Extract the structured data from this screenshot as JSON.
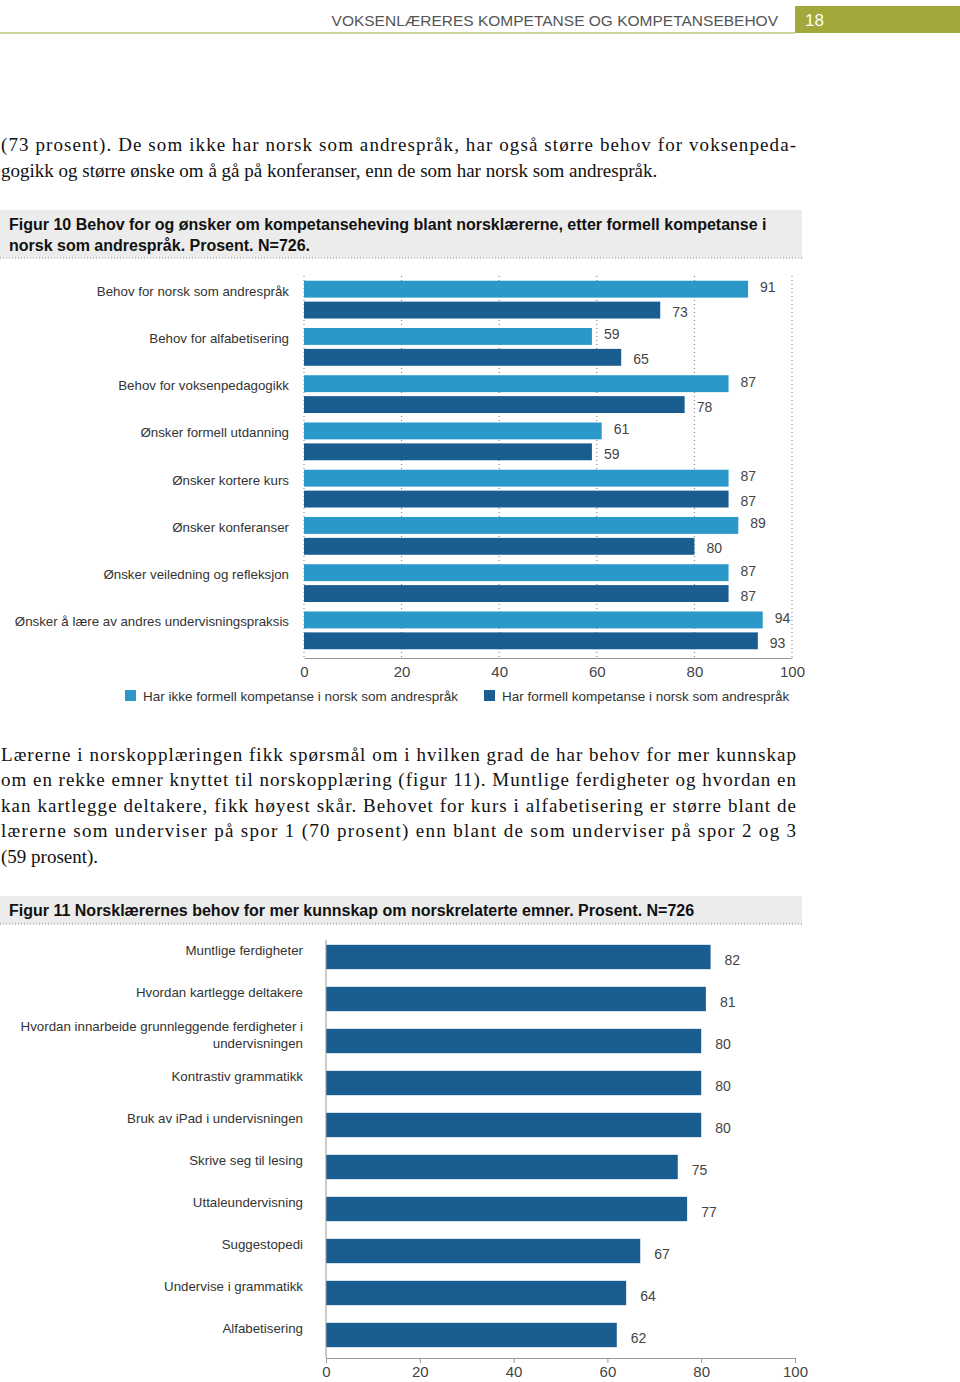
{
  "header": {
    "title": "VOKSENLÆRERES KOMPETANSE OG KOMPETANSEBEHOV",
    "page": "18"
  },
  "text": {
    "paragraph_1": [
      "(73 prosent). De som ikke har norsk som andrespråk, har også større behov for voksenpeda-",
      "gogikk og større ønske om å gå på konferanser, enn de som har norsk som andrespråk."
    ],
    "paragraph_2": [
      "Lærerne i norskopplæringen fikk spørsmål om i hvilken grad de har behov for mer kunnskap",
      "om en rekke emner knyttet til norskopplæring (figur 11). Muntlige ferdigheter og hvordan en",
      "kan kartlegge deltakere, fikk høyest skår. Behovet for kurs i alfabetisering er større blant de",
      "lærerne som underviser på spor 1 (70 prosent) enn blant de som underviser på spor 2 og 3",
      "(59 prosent)."
    ]
  },
  "chart_data": [
    {
      "type": "bar",
      "orientation": "horizontal",
      "title": "Figur 10 Behov for og ønsker om kompetanseheving blant norsklærerne, etter formell kompetanse i norsk som andrespråk. Prosent. N=726.",
      "categories": [
        "Behov for norsk som andrespråk",
        "Behov for alfabetisering",
        "Behov for voksenpedagogikk",
        "Ønsker formell utdanning",
        "Ønsker kortere kurs",
        "Ønsker konferanser",
        "Ønsker veiledning og refleksjon",
        "Ønsker å lære av andres undervisningspraksis"
      ],
      "series": [
        {
          "name": "Har ikke formell kompetanse i norsk som andrespråk",
          "color": "#2a98c9",
          "values": [
            91,
            59,
            87,
            61,
            87,
            89,
            87,
            94
          ]
        },
        {
          "name": "Har formell kompetanse i norsk som andrespråk",
          "color": "#1a5e91",
          "values": [
            73,
            65,
            78,
            59,
            87,
            80,
            87,
            93
          ]
        }
      ],
      "xlim": [
        0,
        100
      ],
      "xticks": [
        0,
        20,
        40,
        60,
        80,
        100
      ],
      "grid": true,
      "data_labels": true,
      "legend": "bottom"
    },
    {
      "type": "bar",
      "orientation": "horizontal",
      "title": "Figur 11 Norsklærernes behov for mer kunnskap om norskrelaterte emner. Prosent. N=726",
      "categories": [
        "Muntlige ferdigheter",
        "Hvordan kartlegge deltakere",
        "Hvordan innarbeide grunnleggende ferdigheter i undervisningen",
        "Kontrastiv grammatikk",
        "Bruk av iPad i undervisningen",
        "Skrive seg til lesing",
        "Uttaleundervisning",
        "Suggestopedi",
        "Undervise i grammatikk",
        "Alfabetisering"
      ],
      "values": [
        82,
        81,
        80,
        80,
        80,
        75,
        77,
        67,
        64,
        62
      ],
      "color": "#1a5e91",
      "xlim": [
        0,
        100
      ],
      "xticks": [
        0,
        20,
        40,
        60,
        80,
        100
      ],
      "grid": false,
      "data_labels": true
    }
  ]
}
